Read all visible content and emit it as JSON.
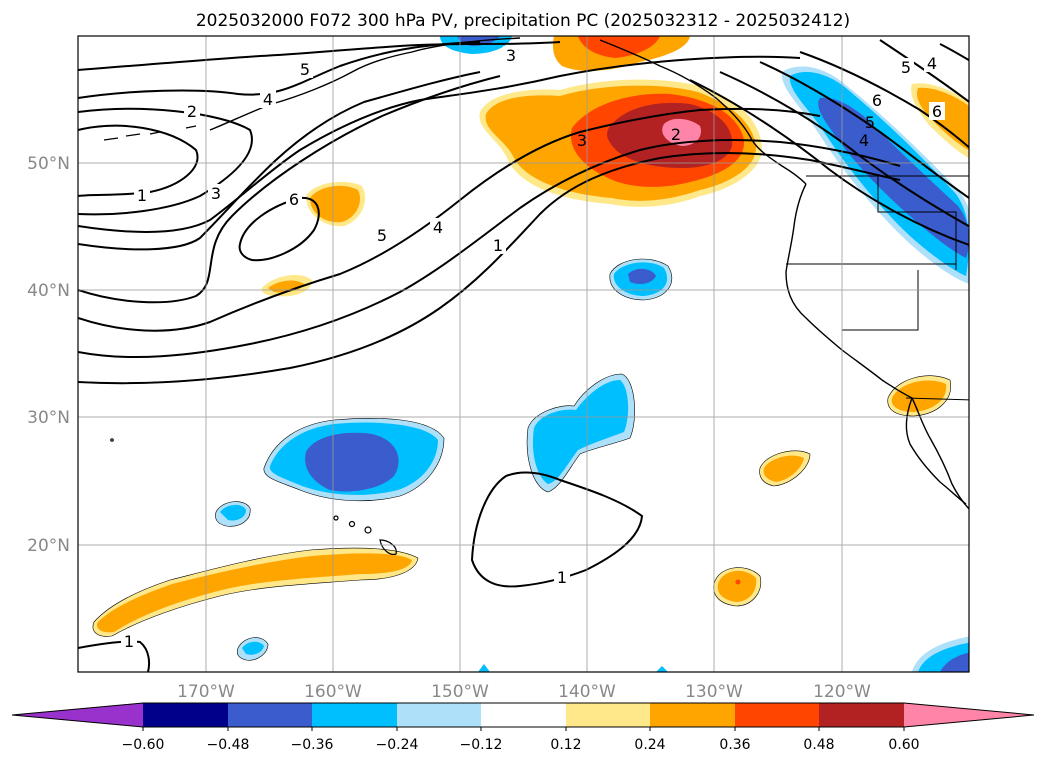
{
  "title": "2025032000 F072 300 hPa PV, precipitation PC (2025032312 - 2025032412)",
  "map": {
    "lon_labels": [
      "170°W",
      "160°W",
      "150°W",
      "140°W",
      "130°W",
      "120°W"
    ],
    "lat_labels": [
      "50°N",
      "40°N",
      "30°N",
      "20°N"
    ],
    "lon_range": [
      -180,
      -110
    ],
    "lat_range": [
      10,
      60
    ],
    "grid": true,
    "pv_contour_labels": [
      "5",
      "3",
      "2",
      "4",
      "1",
      "3",
      "6",
      "5",
      "4",
      "1",
      "3",
      "2",
      "6",
      "5",
      "4",
      "6",
      "5",
      "4",
      "1",
      "1"
    ]
  },
  "colorbar": {
    "ticks": [
      "−0.60",
      "−0.48",
      "−0.36",
      "−0.24",
      "−0.12",
      "0.12",
      "0.24",
      "0.36",
      "0.48",
      "0.60"
    ],
    "colors": {
      "under": "#9932cc",
      "b1": "#00008b",
      "b2": "#3a5ccc",
      "b3": "#00bfff",
      "b4": "#aee0fa",
      "b5": "#ffffff",
      "b6": "#ffe88a",
      "b7": "#ffa500",
      "b8": "#ff4500",
      "b9": "#b22222",
      "over": "#ff85a8"
    }
  }
}
